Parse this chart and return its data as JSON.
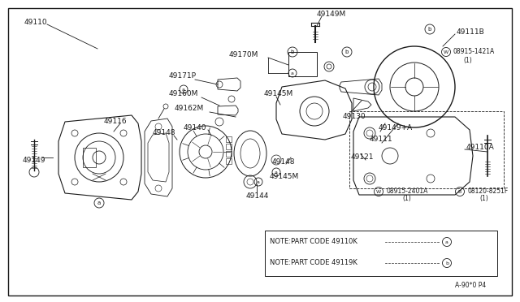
{
  "bg_color": "#ffffff",
  "line_color": "#1a1a1a",
  "text_color": "#1a1a1a",
  "fig_width": 6.4,
  "fig_height": 3.72,
  "note1": "NOTE:PART CODE 49110K",
  "note2": "NOTE:PART CODE 49119K",
  "watermark": "A-90*0 P4"
}
